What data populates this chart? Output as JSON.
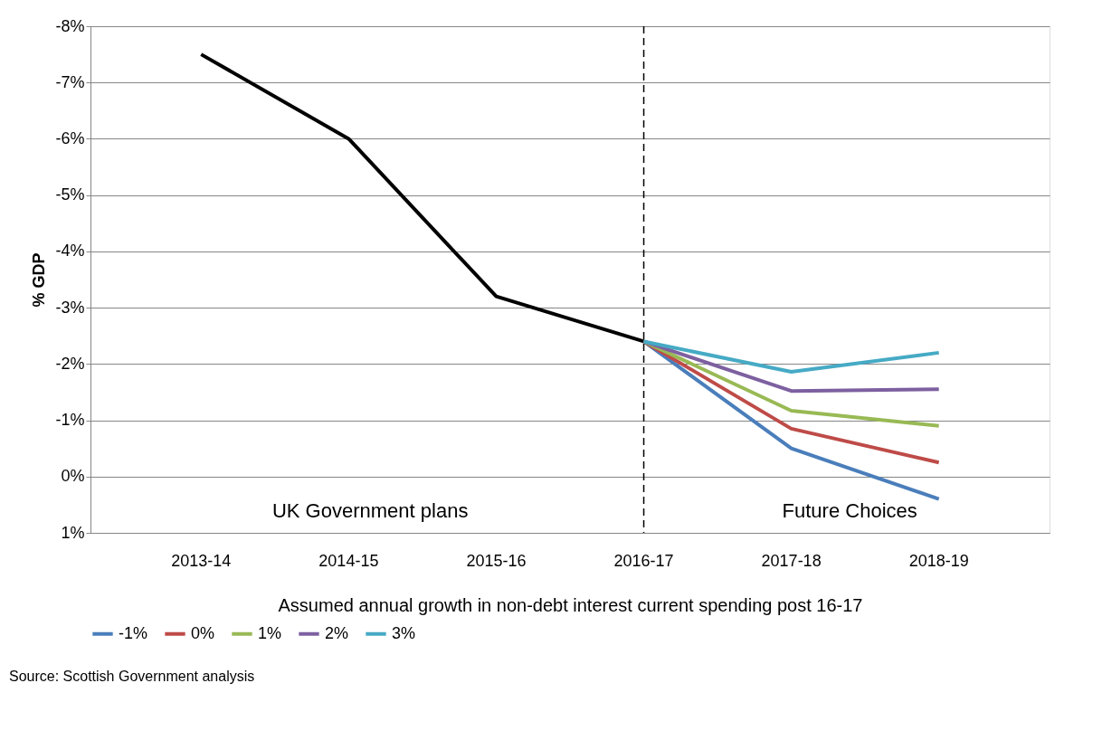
{
  "chart_data": {
    "type": "line",
    "categories": [
      "2013-14",
      "2014-15",
      "2015-16",
      "2016-17",
      "2017-18",
      "2018-19"
    ],
    "series": [
      {
        "color": "#000000",
        "values": [
          -7.5,
          -6.0,
          -3.2,
          -2.4,
          null,
          null
        ]
      },
      {
        "name": "-1%",
        "color": "#4a7ebb",
        "values": [
          null,
          null,
          null,
          -2.4,
          -0.5,
          0.4
        ]
      },
      {
        "name": "0%",
        "color": "#be4b48",
        "values": [
          null,
          null,
          null,
          -2.4,
          -0.85,
          -0.25
        ]
      },
      {
        "name": "1%",
        "color": "#98b954",
        "values": [
          null,
          null,
          null,
          -2.4,
          -1.17,
          -0.9
        ]
      },
      {
        "name": "2%",
        "color": "#7d60a0",
        "values": [
          null,
          null,
          null,
          -2.4,
          -1.52,
          -1.55
        ]
      },
      {
        "name": "3%",
        "color": "#46aac5",
        "values": [
          null,
          null,
          null,
          -2.4,
          -1.86,
          -2.2
        ]
      }
    ],
    "ylim": [
      1,
      -8
    ],
    "yticks": [
      {
        "value": -8,
        "label": "-8%"
      },
      {
        "value": -7,
        "label": "-7%"
      },
      {
        "value": -6,
        "label": "-6%"
      },
      {
        "value": -5,
        "label": "-5%"
      },
      {
        "value": -4,
        "label": "-4%"
      },
      {
        "value": -3,
        "label": "-3%"
      },
      {
        "value": -2,
        "label": "-2%"
      },
      {
        "value": -1,
        "label": "-1%"
      },
      {
        "value": 0,
        "label": "0%"
      },
      {
        "value": 1,
        "label": "1%"
      }
    ],
    "ylabel": "% GDP",
    "xlabel": "Assumed annual growth in non-debt interest current spending post 16-17",
    "ref_lines": [
      {
        "axis": "x",
        "value": "2016-17",
        "color": "#000000",
        "line_style": "dashed"
      }
    ],
    "annotations": [
      "UK Government plans",
      "Future Choices",
      "Source: Scottish Government analysis"
    ],
    "grid": "y",
    "legend": "bottom",
    "marker": "none",
    "line_style": "solid"
  }
}
